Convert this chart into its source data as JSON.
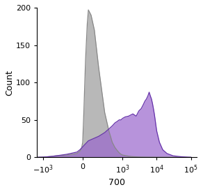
{
  "title": "",
  "xlabel": "700",
  "ylabel": "Count",
  "ylim": [
    0,
    200
  ],
  "yticks": [
    0,
    50,
    100,
    150,
    200
  ],
  "gray_color": "#b8b8b8",
  "gray_edge_color": "#888888",
  "purple_color": "#9966cc",
  "purple_edge_color": "#6633aa",
  "background_color": "#ffffff",
  "linthresh": 100,
  "linscale": 0.15,
  "gray_data": [
    [
      -1500,
      0
    ],
    [
      -1000,
      0.3
    ],
    [
      -800,
      0.5
    ],
    [
      -600,
      1
    ],
    [
      -400,
      2
    ],
    [
      -200,
      3
    ],
    [
      -100,
      5
    ],
    [
      -50,
      8
    ],
    [
      -20,
      12
    ],
    [
      0,
      20
    ],
    [
      20,
      60
    ],
    [
      50,
      130
    ],
    [
      80,
      178
    ],
    [
      100,
      197
    ],
    [
      120,
      190
    ],
    [
      150,
      170
    ],
    [
      200,
      120
    ],
    [
      300,
      60
    ],
    [
      400,
      35
    ],
    [
      500,
      20
    ],
    [
      600,
      13
    ],
    [
      700,
      9
    ],
    [
      800,
      6
    ],
    [
      900,
      4
    ],
    [
      1000,
      3
    ],
    [
      1500,
      1.5
    ],
    [
      2000,
      0.8
    ],
    [
      3000,
      0.4
    ],
    [
      5000,
      0.2
    ],
    [
      10000,
      0.1
    ],
    [
      50000,
      0
    ],
    [
      100000,
      0
    ]
  ],
  "purple_data": [
    [
      -1500,
      0
    ],
    [
      -1000,
      0.2
    ],
    [
      -800,
      0.5
    ],
    [
      -600,
      1
    ],
    [
      -400,
      2
    ],
    [
      -200,
      4
    ],
    [
      -100,
      7
    ],
    [
      -50,
      10
    ],
    [
      0,
      14
    ],
    [
      50,
      18
    ],
    [
      100,
      22
    ],
    [
      200,
      28
    ],
    [
      300,
      33
    ],
    [
      400,
      38
    ],
    [
      500,
      42
    ],
    [
      600,
      46
    ],
    [
      700,
      48
    ],
    [
      800,
      50
    ],
    [
      900,
      50
    ],
    [
      1000,
      52
    ],
    [
      1200,
      54
    ],
    [
      1500,
      55
    ],
    [
      2000,
      58
    ],
    [
      2500,
      55
    ],
    [
      3000,
      62
    ],
    [
      3500,
      65
    ],
    [
      4000,
      70
    ],
    [
      4500,
      75
    ],
    [
      5000,
      78
    ],
    [
      5500,
      82
    ],
    [
      6000,
      87
    ],
    [
      6200,
      85
    ],
    [
      6500,
      82
    ],
    [
      7000,
      78
    ],
    [
      7500,
      72
    ],
    [
      8000,
      65
    ],
    [
      8500,
      58
    ],
    [
      9000,
      50
    ],
    [
      9500,
      42
    ],
    [
      10000,
      35
    ],
    [
      12000,
      20
    ],
    [
      15000,
      10
    ],
    [
      20000,
      5
    ],
    [
      30000,
      2
    ],
    [
      50000,
      0.8
    ],
    [
      80000,
      0.2
    ],
    [
      100000,
      0
    ]
  ]
}
